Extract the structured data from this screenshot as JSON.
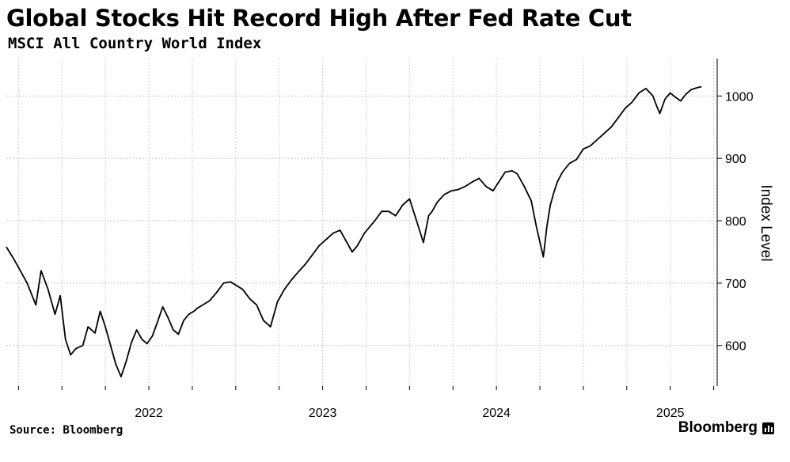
{
  "header": {
    "title": "Global Stocks Hit Record High After Fed Rate Cut",
    "subtitle": "MSCI All Country World Index"
  },
  "footer": {
    "source": "Source: Bloomberg",
    "brand": "Bloomberg"
  },
  "chart_data": {
    "type": "line",
    "title": "Global Stocks Hit Record High After Fed Rate Cut",
    "subtitle": "MSCI All Country World Index",
    "xlabel": "",
    "ylabel": "Index Level",
    "x_tick_labels": [
      "2022",
      "2023",
      "2024",
      "2025"
    ],
    "y_ticks": [
      600,
      700,
      800,
      900,
      1000
    ],
    "ylim": [
      535,
      1060
    ],
    "xlim": [
      2021.68,
      2025.77
    ],
    "grid": true,
    "series": [
      {
        "name": "MSCI All Country World Index",
        "x": [
          2021.68,
          2021.72,
          2021.76,
          2021.8,
          2021.85,
          2021.88,
          2021.92,
          2021.96,
          2021.99,
          2022.02,
          2022.05,
          2022.08,
          2022.12,
          2022.15,
          2022.19,
          2022.22,
          2022.25,
          2022.28,
          2022.31,
          2022.34,
          2022.37,
          2022.4,
          2022.43,
          2022.46,
          2022.49,
          2022.52,
          2022.55,
          2022.58,
          2022.61,
          2022.64,
          2022.67,
          2022.7,
          2022.73,
          2022.76,
          2022.78,
          2022.81,
          2022.85,
          2022.89,
          2022.93,
          2022.97,
          2023.0,
          2023.04,
          2023.08,
          2023.12,
          2023.16,
          2023.2,
          2023.24,
          2023.28,
          2023.32,
          2023.36,
          2023.4,
          2023.44,
          2023.48,
          2023.52,
          2023.56,
          2023.6,
          2023.63,
          2023.67,
          2023.7,
          2023.74,
          2023.77,
          2023.8,
          2023.84,
          2023.88,
          2023.92,
          2023.96,
          2024.0,
          2024.04,
          2024.08,
          2024.11,
          2024.13,
          2024.16,
          2024.2,
          2024.24,
          2024.28,
          2024.32,
          2024.36,
          2024.4,
          2024.44,
          2024.48,
          2024.52,
          2024.55,
          2024.59,
          2024.62,
          2024.66,
          2024.7,
          2024.73,
          2024.77,
          2024.79,
          2024.81,
          2024.83,
          2024.85,
          2024.88,
          2024.92,
          2024.96,
          2025.0,
          2025.04,
          2025.08,
          2025.12,
          2025.16,
          2025.2,
          2025.24,
          2025.28,
          2025.32,
          2025.36,
          2025.4,
          2025.42,
          2025.44,
          2025.47,
          2025.5,
          2025.53,
          2025.56,
          2025.59,
          2025.62,
          2025.65,
          2025.68
        ],
        "values": [
          758,
          740,
          720,
          700,
          665,
          720,
          690,
          650,
          680,
          610,
          585,
          595,
          600,
          630,
          620,
          655,
          630,
          600,
          570,
          550,
          575,
          605,
          625,
          610,
          603,
          615,
          638,
          662,
          645,
          625,
          618,
          640,
          650,
          655,
          660,
          665,
          672,
          685,
          700,
          702,
          697,
          690,
          675,
          665,
          640,
          630,
          670,
          690,
          705,
          718,
          730,
          745,
          760,
          770,
          780,
          785,
          770,
          750,
          760,
          780,
          790,
          800,
          815,
          815,
          808,
          825,
          835,
          800,
          765,
          808,
          815,
          830,
          842,
          848,
          850,
          855,
          862,
          868,
          855,
          848,
          865,
          878,
          880,
          875,
          855,
          832,
          790,
          742,
          790,
          825,
          845,
          862,
          878,
          892,
          898,
          915,
          920,
          930,
          940,
          950,
          965,
          980,
          990,
          1005,
          1012,
          1000,
          985,
          972,
          995,
          1005,
          998,
          992,
          1003,
          1010,
          1013,
          1015
        ]
      }
    ]
  }
}
